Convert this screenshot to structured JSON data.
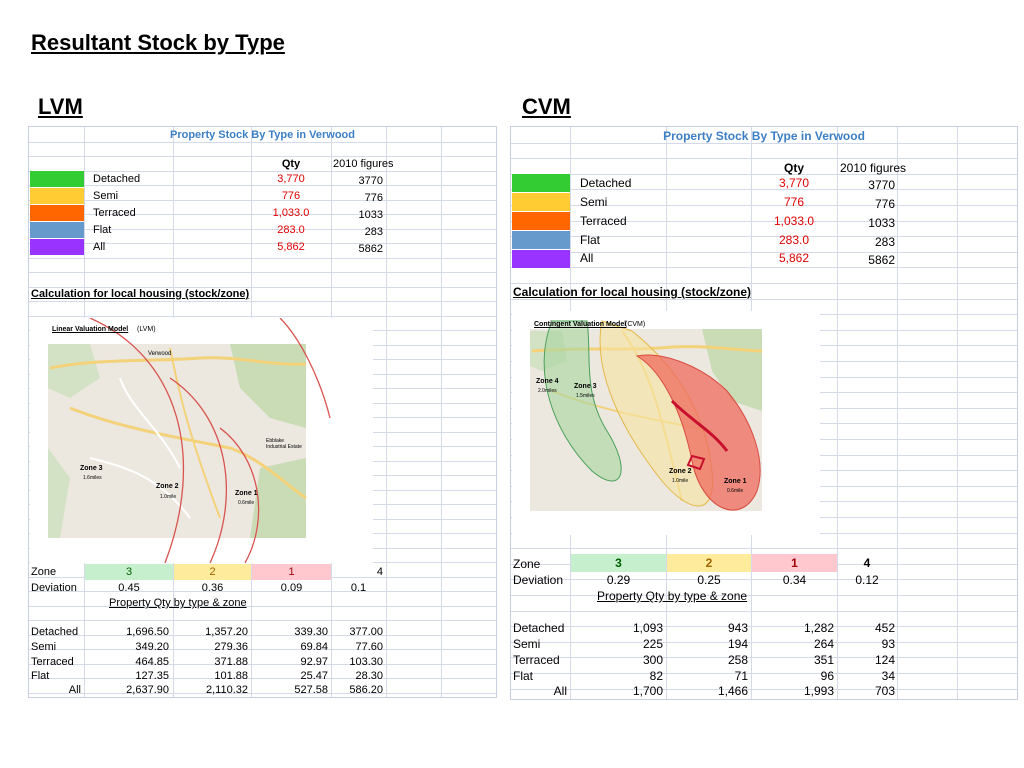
{
  "page_title": "Resultant Stock by Type",
  "lvm": {
    "label": "LVM",
    "sheet_title": "Property Stock By Type in Verwood",
    "qty_header": "Qty",
    "fig_header": "2010 figures",
    "types": [
      {
        "name": "Detached",
        "qty": "3,770",
        "fig": "3770",
        "color": "#33cc33"
      },
      {
        "name": "Semi",
        "qty": "776",
        "fig": "776",
        "color": "#ffcc33"
      },
      {
        "name": "Terraced",
        "qty": "1,033.0",
        "fig": "1033",
        "color": "#ff6600"
      },
      {
        "name": "Flat",
        "qty": "283.0",
        "fig": "283",
        "color": "#6699cc"
      },
      {
        "name": "All",
        "qty": "5,862",
        "fig": "5862",
        "color": "#9933ff"
      }
    ],
    "calc_heading": "Calculation for local housing  (stock/zone)",
    "map_title": "Linear Valuation Model",
    "map_title_suffix": "(LVM)",
    "map_labels": {
      "zone3": "Zone 3",
      "zone3_sub": "1.6miles",
      "zone2": "Zone 2",
      "zone2_sub": "1.0mile",
      "zone1": "Zone 1",
      "zone1_sub": "0.6mile",
      "town": "Verwood",
      "estate": "Ebblake Industrial Estate"
    },
    "zone_label": "Zone",
    "zones": [
      "3",
      "2",
      "1",
      "4"
    ],
    "deviation_label": "Deviation",
    "deviations": [
      "0.45",
      "0.36",
      "0.09",
      "0.1"
    ],
    "qty_heading": "Property Qty by type & zone",
    "rows": [
      {
        "name": "Detached",
        "v": [
          "1,696.50",
          "1,357.20",
          "339.30",
          "377.00"
        ]
      },
      {
        "name": "Semi",
        "v": [
          "349.20",
          "279.36",
          "69.84",
          "77.60"
        ]
      },
      {
        "name": "Terraced",
        "v": [
          "464.85",
          "371.88",
          "92.97",
          "103.30"
        ]
      },
      {
        "name": "Flat",
        "v": [
          "127.35",
          "101.88",
          "25.47",
          "28.30"
        ]
      },
      {
        "name": "All",
        "v": [
          "2,637.90",
          "2,110.32",
          "527.58",
          "586.20"
        ]
      }
    ]
  },
  "cvm": {
    "label": "CVM",
    "sheet_title": "Property Stock By Type in Verwood",
    "qty_header": "Qty",
    "fig_header": "2010 figures",
    "types": [
      {
        "name": "Detached",
        "qty": "3,770",
        "fig": "3770",
        "color": "#33cc33"
      },
      {
        "name": "Semi",
        "qty": "776",
        "fig": "776",
        "color": "#ffcc33"
      },
      {
        "name": "Terraced",
        "qty": "1,033.0",
        "fig": "1033",
        "color": "#ff6600"
      },
      {
        "name": "Flat",
        "qty": "283.0",
        "fig": "283",
        "color": "#6699cc"
      },
      {
        "name": "All",
        "qty": "5,862",
        "fig": "5862",
        "color": "#9933ff"
      }
    ],
    "calc_heading": "Calculation for local housing  (stock/zone)",
    "map_title": "Contingent Valuation Model",
    "map_title_suffix": "(CVM)",
    "map_labels": {
      "zone4": "Zone 4",
      "zone4_sub": "2.0miles",
      "zone3": "Zone 3",
      "zone3_sub": "1.5miles",
      "zone2": "Zone 2",
      "zone2_sub": "1.0mile",
      "zone1": "Zone 1",
      "zone1_sub": "0.6mile"
    },
    "zone_label": "Zone",
    "zones": [
      "3",
      "2",
      "1",
      "4"
    ],
    "deviation_label": "Deviation",
    "deviations": [
      "0.29",
      "0.25",
      "0.34",
      "0.12"
    ],
    "qty_heading": "Property Qty by type & zone",
    "rows": [
      {
        "name": "Detached",
        "v": [
          "1,093",
          "943",
          "1,282",
          "452"
        ]
      },
      {
        "name": "Semi",
        "v": [
          "225",
          "194",
          "264",
          "93"
        ]
      },
      {
        "name": "Terraced",
        "v": [
          "300",
          "258",
          "351",
          "124"
        ]
      },
      {
        "name": "Flat",
        "v": [
          "82",
          "71",
          "96",
          "34"
        ]
      },
      {
        "name": "All",
        "v": [
          "1,700",
          "1,466",
          "1,993",
          "703"
        ]
      }
    ]
  },
  "zone_colors": {
    "z3": "#c6efce",
    "z2": "#ffeb9c",
    "z1": "#ffc7ce"
  }
}
